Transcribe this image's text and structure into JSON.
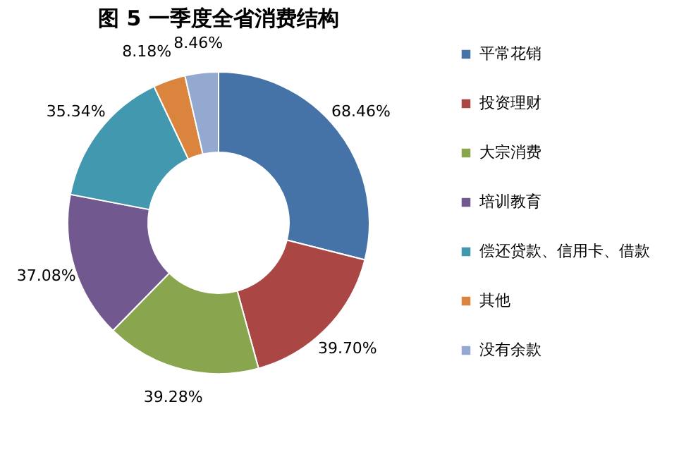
{
  "chart_data": {
    "type": "donut",
    "title": "图 5  一季度全省消费结构",
    "categories": [
      "平常花销",
      "投资理财",
      "大宗消费",
      "培训教育",
      "偿还贷款、信用卡、借款",
      "其他",
      "没有余款"
    ],
    "values": [
      68.46,
      39.7,
      39.28,
      37.08,
      35.34,
      8.18,
      8.46
    ],
    "value_labels": [
      "68.46%",
      "39.70%",
      "39.28%",
      "37.08%",
      "35.34%",
      "8.18%",
      "8.46%"
    ],
    "colors": [
      "#4572a7",
      "#aa4643",
      "#89a54e",
      "#71588f",
      "#4198af",
      "#db843d",
      "#93a9cf"
    ],
    "legend": "right"
  }
}
